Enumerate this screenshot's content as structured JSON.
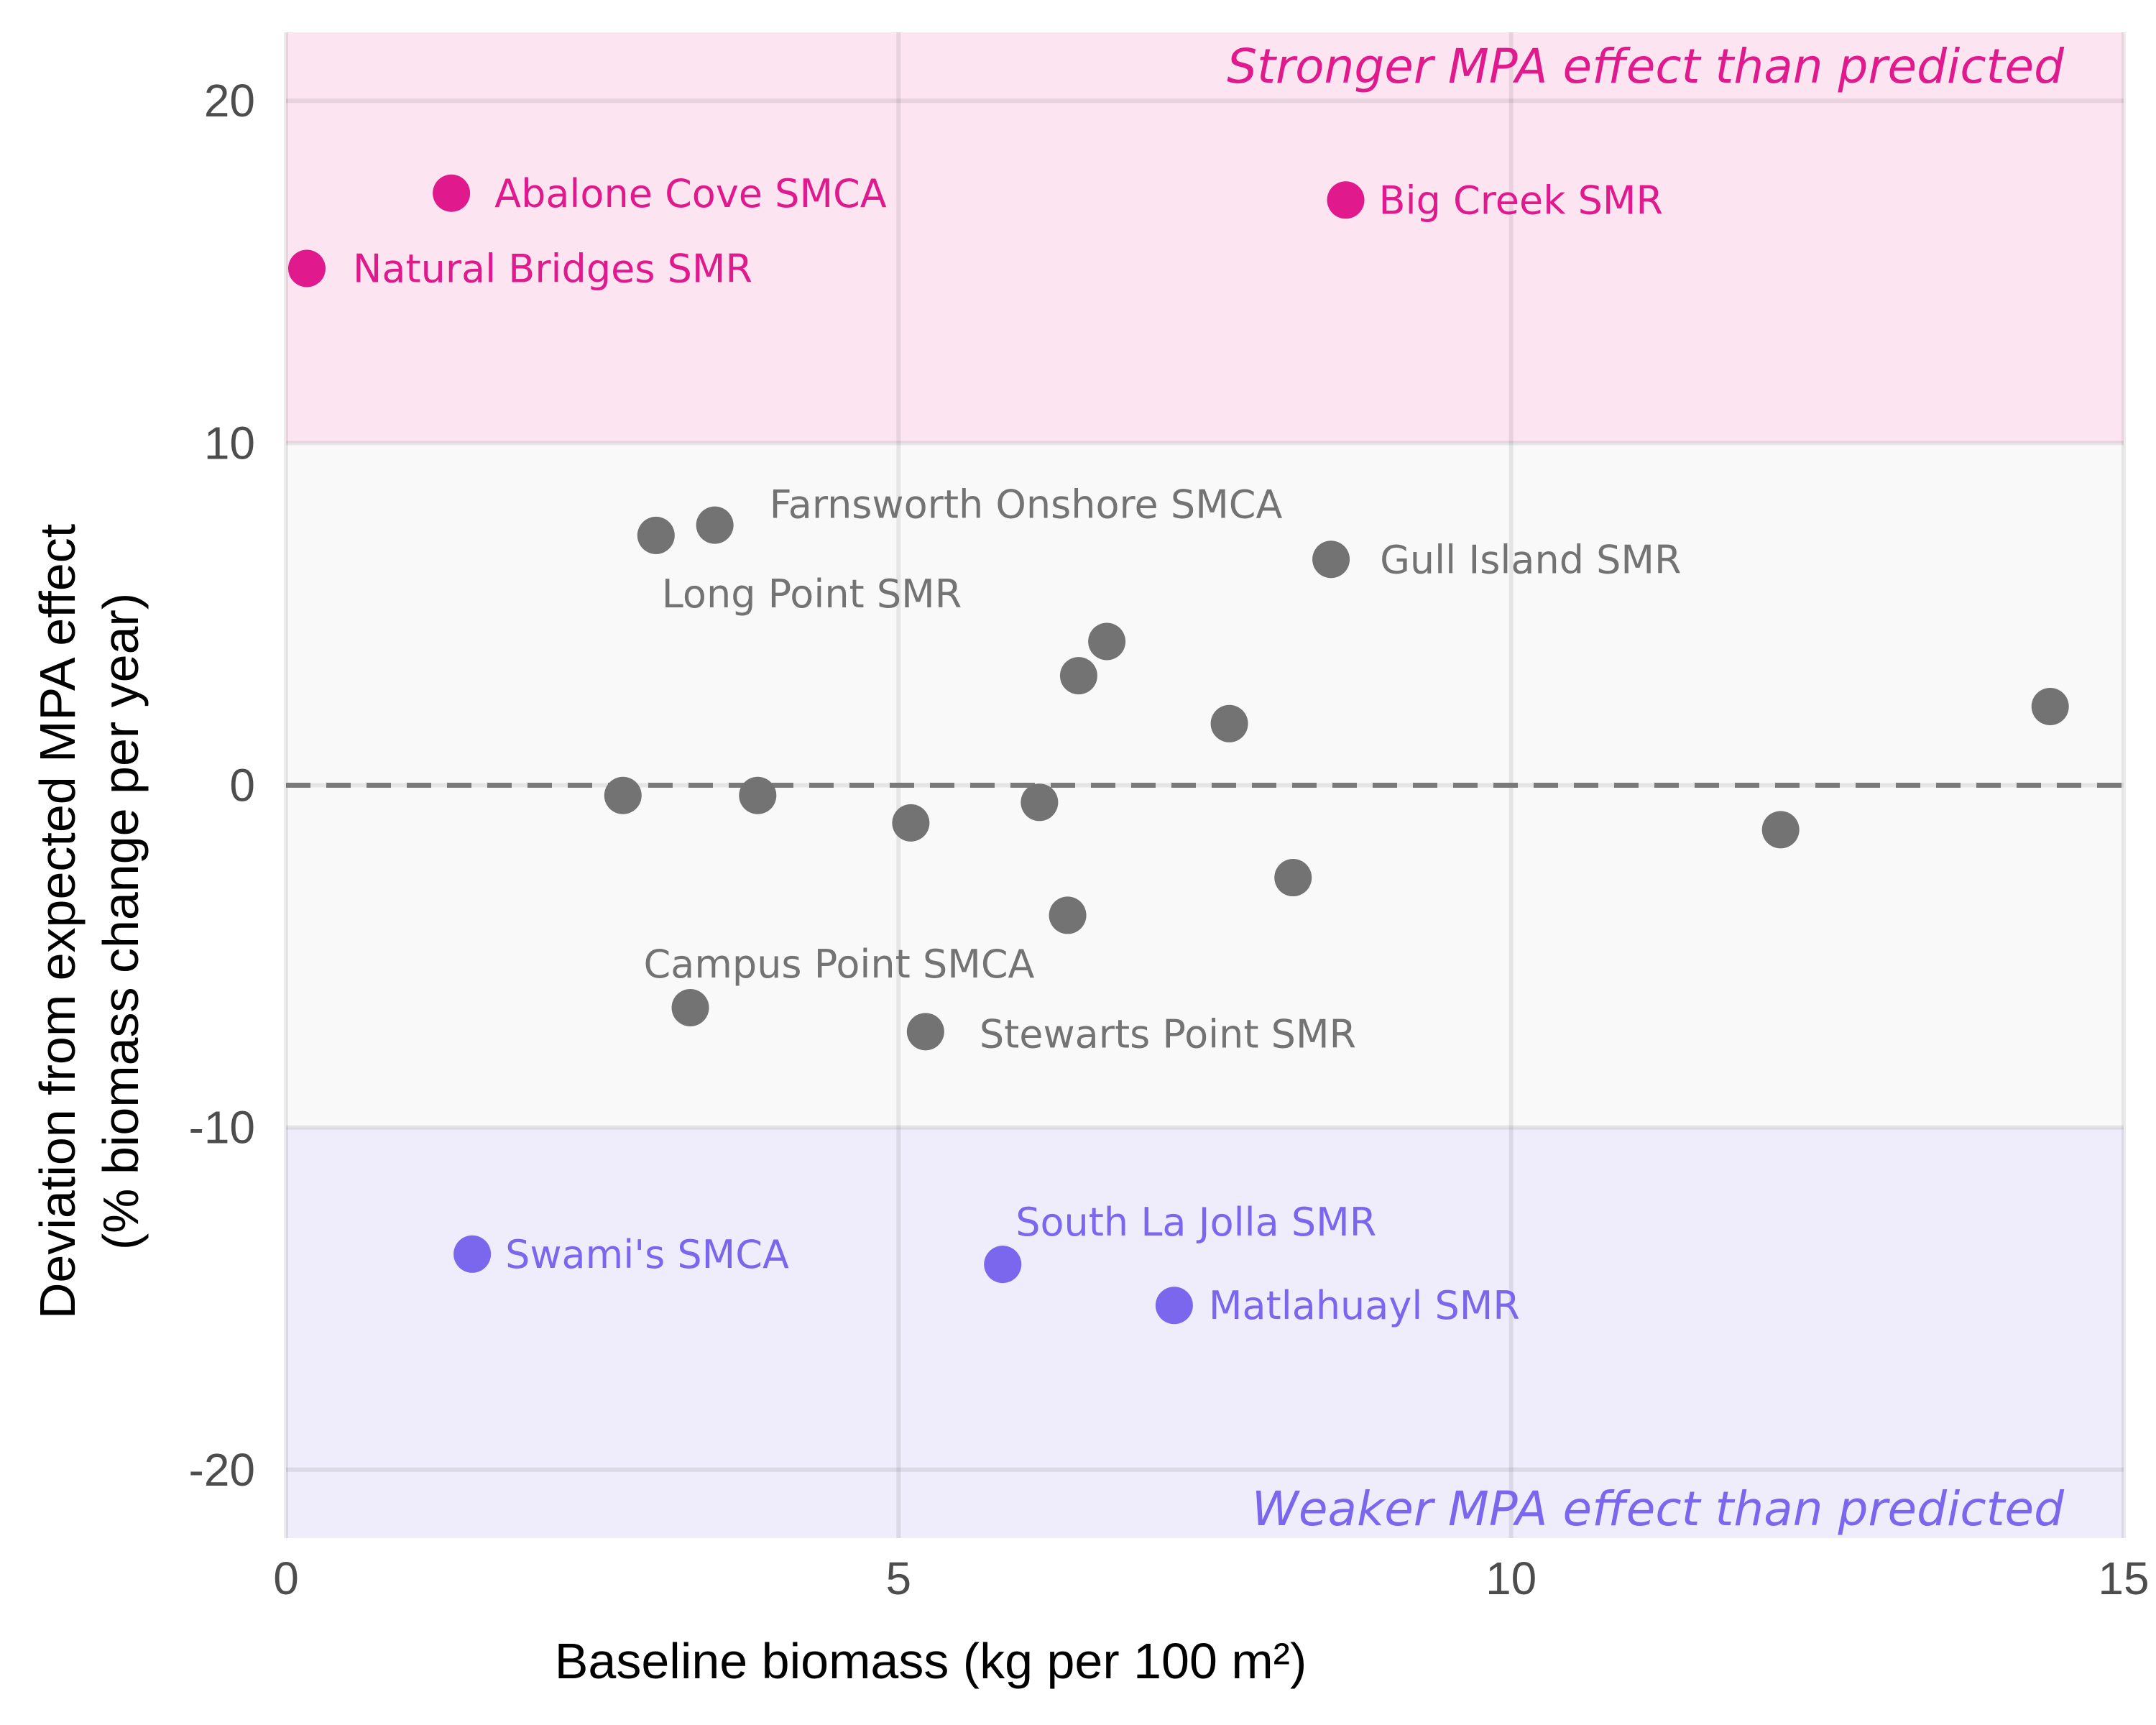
{
  "chart_data": {
    "type": "scatter",
    "xlabel": "Baseline biomass (kg per 100 m²)",
    "ylabel_line1": "Deviation from expected MPA effect",
    "ylabel_line2": "(% biomass change per year)",
    "xlim": [
      0,
      15
    ],
    "ylim": [
      -22,
      22
    ],
    "xticks": [
      0,
      5,
      10,
      15
    ],
    "yticks": [
      -20,
      -10,
      0,
      10,
      20
    ],
    "grid": true,
    "reference_line": {
      "y": 0,
      "style": "dashed",
      "color": "#7a7a7a"
    },
    "bands": [
      {
        "from": 10,
        "to": 22,
        "color": "#fce4f1"
      },
      {
        "from": -10,
        "to": 10,
        "color": "#f9f9f9"
      },
      {
        "from": -22,
        "to": -10,
        "color": "#efecfb"
      }
    ],
    "annotations": [
      {
        "text": "Stronger MPA effect than predicted",
        "color": "#e0198c"
      },
      {
        "text": "Weaker MPA effect than predicted",
        "color": "#7b66ee"
      }
    ],
    "colors": {
      "stronger": "#e0198c",
      "weaker": "#7b66ee",
      "neutral": "#737373"
    },
    "points": [
      {
        "x": 0.17,
        "y": 15.1,
        "group": "stronger",
        "label": "Natural Bridges SMR"
      },
      {
        "x": 1.35,
        "y": 17.3,
        "group": "stronger",
        "label": "Abalone Cove SMCA"
      },
      {
        "x": 8.65,
        "y": 17.1,
        "group": "stronger",
        "label": "Big Creek SMR"
      },
      {
        "x": 3.02,
        "y": 7.3,
        "group": "neutral",
        "label": "Long Point SMR"
      },
      {
        "x": 3.5,
        "y": 7.6,
        "group": "neutral",
        "label": "Farnsworth Onshore SMCA"
      },
      {
        "x": 8.53,
        "y": 6.6,
        "group": "neutral",
        "label": "Gull Island SMR"
      },
      {
        "x": 6.7,
        "y": 4.2,
        "group": "neutral",
        "label": ""
      },
      {
        "x": 6.47,
        "y": 3.2,
        "group": "neutral",
        "label": ""
      },
      {
        "x": 7.7,
        "y": 1.8,
        "group": "neutral",
        "label": ""
      },
      {
        "x": 14.4,
        "y": 2.3,
        "group": "neutral",
        "label": ""
      },
      {
        "x": 2.75,
        "y": -0.3,
        "group": "neutral",
        "label": ""
      },
      {
        "x": 3.85,
        "y": -0.3,
        "group": "neutral",
        "label": ""
      },
      {
        "x": 5.1,
        "y": -1.1,
        "group": "neutral",
        "label": ""
      },
      {
        "x": 6.15,
        "y": -0.5,
        "group": "neutral",
        "label": ""
      },
      {
        "x": 12.2,
        "y": -1.3,
        "group": "neutral",
        "label": ""
      },
      {
        "x": 8.22,
        "y": -2.7,
        "group": "neutral",
        "label": ""
      },
      {
        "x": 6.38,
        "y": -3.8,
        "group": "neutral",
        "label": ""
      },
      {
        "x": 3.3,
        "y": -6.5,
        "group": "neutral",
        "label": "Campus Point SMCA"
      },
      {
        "x": 5.22,
        "y": -7.2,
        "group": "neutral",
        "label": "Stewarts Point SMR"
      },
      {
        "x": 1.52,
        "y": -13.7,
        "group": "weaker",
        "label": "Swami's SMCA"
      },
      {
        "x": 5.85,
        "y": -14.0,
        "group": "weaker",
        "label": "South La Jolla SMR"
      },
      {
        "x": 7.25,
        "y": -15.2,
        "group": "weaker",
        "label": "Matlahuayl SMR"
      }
    ]
  }
}
